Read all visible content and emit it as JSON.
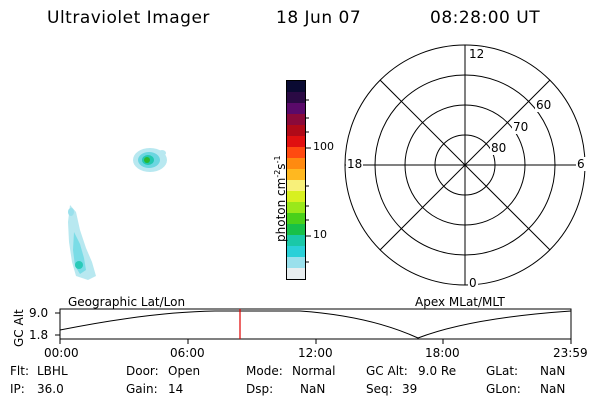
{
  "header": {
    "instrument": "Ultraviolet Imager",
    "date": "18 Jun 07",
    "time": "08:28:00 UT"
  },
  "colorbar": {
    "unit": "photon cm",
    "unit_exp": "-2",
    "unit_mid": "s",
    "unit_exp2": "-1",
    "tick_100": "100",
    "tick_10": "10",
    "colors": [
      "#0a0a32",
      "#2a0a44",
      "#5a0a6a",
      "#8a0a3a",
      "#b00a18",
      "#e01010",
      "#ff4a10",
      "#ff8a10",
      "#ffb820",
      "#f8f07a",
      "#d8f020",
      "#9ae81a",
      "#4ad01a",
      "#18c048",
      "#1ac8a8",
      "#2ad0d8",
      "#9ae0ec",
      "#e8eef0"
    ]
  },
  "polar": {
    "label_top": "12",
    "label_left": "18",
    "label_right": "6",
    "label_bottom": "0",
    "lat_60": "60",
    "lat_70": "70",
    "lat_80": "80"
  },
  "map_labels": {
    "left": "Geographic Lat/Lon",
    "right": "Apex MLat/MLT"
  },
  "orbit": {
    "ylabel": "GC Alt",
    "y_top": "9.0",
    "y_bottom": "1.8",
    "x_ticks": [
      "00:00",
      "06:00",
      "12:00",
      "18:00",
      "23:59"
    ],
    "marker_color": "#e00000"
  },
  "info": {
    "flt_label": "Flt:",
    "flt_value": "LBHL",
    "door_label": "Door:",
    "door_value": "Open",
    "mode_label": "Mode:",
    "mode_value": "Normal",
    "gcalt_label": "GC Alt:",
    "gcalt_value": "9.0 Re",
    "glat_label": "GLat:",
    "glat_value": "NaN",
    "ip_label": "IP:",
    "ip_value": "36.0",
    "gain_label": "Gain:",
    "gain_value": "14",
    "dsp_label": "Dsp:",
    "dsp_value": "NaN",
    "seq_label": "Seq:",
    "seq_value": "39",
    "glon_label": "GLon:",
    "glon_value": "NaN"
  }
}
